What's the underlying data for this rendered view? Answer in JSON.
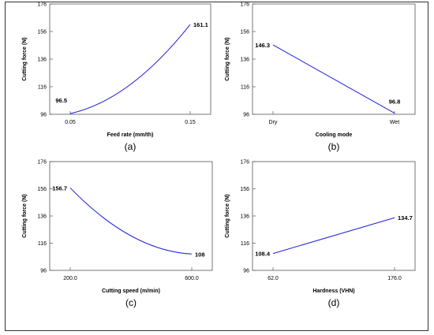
{
  "chart_data": [
    {
      "type": "line",
      "caption": "(a)",
      "xlabel": "Feed rate (mm/th)",
      "ylabel": "Cutting force (N)",
      "yticks": [
        96,
        116,
        136,
        156,
        176
      ],
      "ylim": [
        96,
        176
      ],
      "xticks": [
        "0.05",
        "0.15"
      ],
      "xlim": [
        0.05,
        0.15
      ],
      "curve": "convex",
      "series": [
        {
          "x": [
            0.05,
            0.15
          ],
          "y": [
            96.5,
            161.1
          ],
          "labels": [
            "96.5",
            "161.1"
          ]
        }
      ],
      "color": "#1f1fdc"
    },
    {
      "type": "line",
      "caption": "(b)",
      "xlabel": "Cooling mode",
      "ylabel": "Cutting force (N)",
      "yticks": [
        96,
        116,
        136,
        156,
        176
      ],
      "ylim": [
        96,
        176
      ],
      "xticks": [
        "Dry",
        "Wet"
      ],
      "xlim": [
        0,
        1
      ],
      "curve": "linear",
      "series": [
        {
          "x": [
            0,
            1
          ],
          "y": [
            146.3,
            96.8
          ],
          "labels": [
            "146.3",
            "96.8"
          ]
        }
      ],
      "color": "#1f1fdc"
    },
    {
      "type": "line",
      "caption": "(c)",
      "xlabel": "Cutting speed (m/min)",
      "ylabel": "Cutting force (N)",
      "yticks": [
        96,
        116,
        136,
        156,
        176
      ],
      "ylim": [
        96,
        176
      ],
      "xticks": [
        "200.0",
        "600.0"
      ],
      "xlim": [
        200,
        600
      ],
      "curve": "concave",
      "series": [
        {
          "x": [
            200,
            600
          ],
          "y": [
            156.7,
            108
          ],
          "labels": [
            "156.7",
            "108"
          ]
        }
      ],
      "color": "#1f1fdc"
    },
    {
      "type": "line",
      "caption": "(d)",
      "xlabel": "Hardness (VHN)",
      "ylabel": "Cutting force (N)",
      "yticks": [
        96,
        116,
        136,
        156,
        176
      ],
      "ylim": [
        96,
        176
      ],
      "xticks": [
        "62.0",
        "176.0"
      ],
      "xlim": [
        62,
        176
      ],
      "curve": "linear",
      "series": [
        {
          "x": [
            62,
            176
          ],
          "y": [
            108.4,
            134.7
          ],
          "labels": [
            "108.4",
            "134.7"
          ]
        }
      ],
      "color": "#1f1fdc"
    }
  ]
}
